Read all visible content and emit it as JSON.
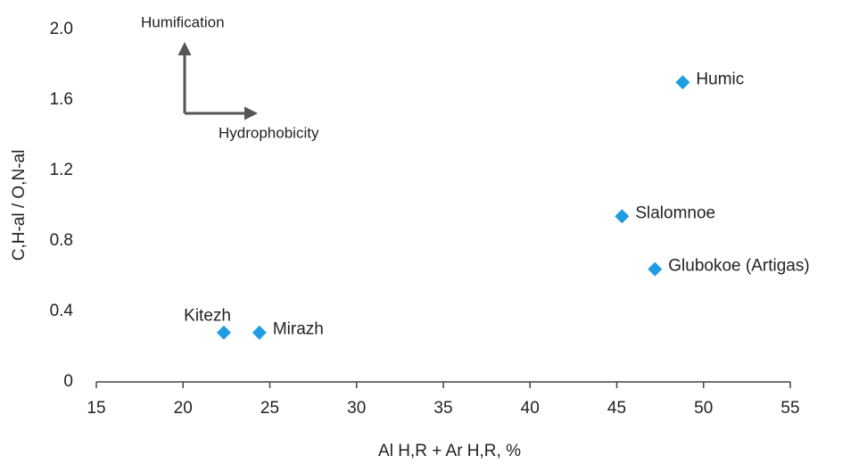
{
  "chart_data": {
    "type": "scatter",
    "x_label": "Al H,R + Ar H,R, %",
    "y_label": "C,H-al / O,N-al",
    "annotations": [
      "Humification",
      "Hydrophobicity"
    ],
    "point_labels": [
      "Kitezh",
      "Mirazh",
      "Slalomnoe",
      "Glubokoe (Artigas)",
      "Humic"
    ],
    "x": [
      22.35,
      24.4,
      45.3,
      47.2,
      48.8
    ],
    "values": [
      0.28,
      0.28,
      0.94,
      0.64,
      1.7
    ],
    "color": "#1e9de2",
    "xlim": [
      15,
      55
    ],
    "xticks": [
      15,
      20,
      25,
      30,
      35,
      40,
      45,
      50,
      55
    ],
    "ylim": [
      0,
      2
    ],
    "yticks": [
      0,
      0.4,
      0.8,
      1.2,
      1.6,
      {
        "value": 2,
        "label": "2.0"
      }
    ],
    "grid": false
  }
}
